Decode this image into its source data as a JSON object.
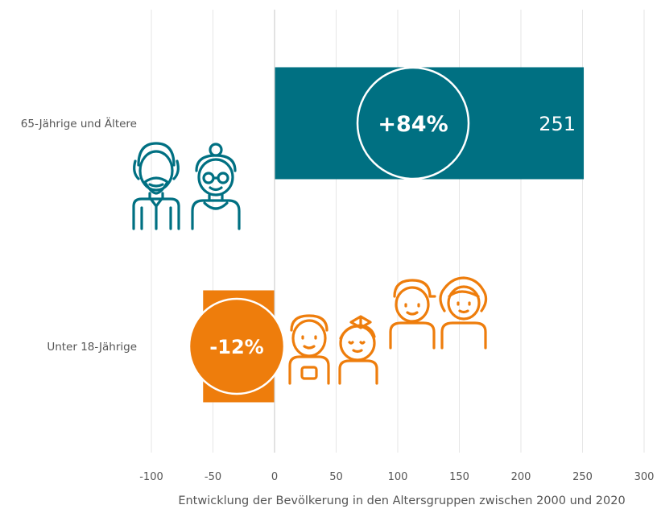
{
  "colors": {
    "teal": "#007082",
    "orange": "#ee7d0c",
    "grid": "#e6e6e6",
    "zero_line": "#cfcfcf",
    "text": "#555555"
  },
  "icons": [
    "elderly-couple-icon",
    "children-group-icon"
  ],
  "chart_data": {
    "type": "bar",
    "orientation": "horizontal",
    "title": "",
    "xlabel": "Entwicklung der Bevölkerung in den Altersgruppen zwischen 2000 und 2020",
    "ylabel": "",
    "xlim": [
      -100,
      300
    ],
    "xticks": [
      -100,
      -50,
      0,
      50,
      100,
      150,
      200,
      250,
      300
    ],
    "grid": true,
    "categories": [
      "65-Jährige und Ältere",
      "Unter 18-Jährige"
    ],
    "values": [
      251,
      -58
    ],
    "data_labels": [
      "251",
      ""
    ],
    "percent_labels": [
      "+84%",
      "-12%"
    ]
  }
}
